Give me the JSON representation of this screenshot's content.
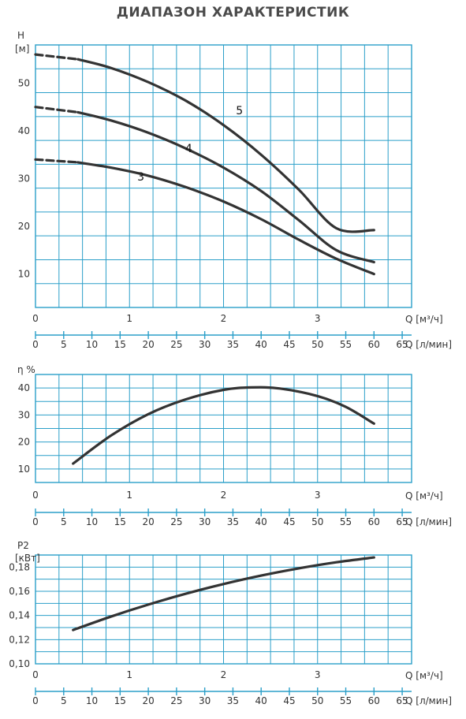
{
  "title": "ДИАПАЗОН ХАРАКТЕРИСТИК",
  "colors": {
    "grid": "#2b9fc9",
    "curve": "#333333",
    "text": "#333333"
  },
  "chart_data": [
    {
      "type": "line",
      "ylabel": "H",
      "yunit": "[м]",
      "xlabel_m3h": "Q [м³/ч]",
      "xlabel_lmin": "Q [л/мин]",
      "xlim": [
        0,
        4
      ],
      "ylim": [
        3,
        58
      ],
      "yticks": [
        "10",
        "20",
        "30",
        "40",
        "50"
      ],
      "yticks_values": [
        10,
        20,
        30,
        40,
        50
      ],
      "xticks_m3h": [
        "0",
        "1",
        "2",
        "3"
      ],
      "xticks_m3h_values": [
        0,
        1,
        2,
        3
      ],
      "xticks_lmin": [
        "0",
        "5",
        "10",
        "15",
        "20",
        "25",
        "30",
        "35",
        "40",
        "45",
        "50",
        "55",
        "60",
        "65"
      ],
      "xticks_lmin_values": [
        0,
        5,
        10,
        15,
        20,
        25,
        30,
        35,
        40,
        45,
        50,
        55,
        60,
        65
      ],
      "series": [
        {
          "name": "5",
          "label_at": [
            2.17,
            43.5
          ],
          "dashed_x": [
            0,
            0.45
          ],
          "dashed_y": [
            56.0,
            55.0
          ],
          "x": [
            0.45,
            0.8,
            1.2,
            1.6,
            2.0,
            2.4,
            2.8,
            3.2,
            3.6
          ],
          "values": [
            55.0,
            53.2,
            50.2,
            46.3,
            41.2,
            35.0,
            27.7,
            19.6,
            19.2
          ]
        },
        {
          "name": "4",
          "label_at": [
            1.63,
            35.5
          ],
          "dashed_x": [
            0,
            0.45
          ],
          "dashed_y": [
            45.0,
            43.9
          ],
          "x": [
            0.45,
            0.8,
            1.2,
            1.6,
            2.0,
            2.4,
            2.8,
            3.2,
            3.6
          ],
          "values": [
            43.9,
            42.2,
            39.6,
            36.3,
            32.3,
            27.4,
            21.3,
            15.0,
            12.5
          ]
        },
        {
          "name": "3",
          "label_at": [
            1.12,
            29.6
          ],
          "dashed_x": [
            0,
            0.45
          ],
          "dashed_y": [
            34.0,
            33.4
          ],
          "x": [
            0.45,
            0.8,
            1.2,
            1.6,
            2.0,
            2.4,
            2.8,
            3.2,
            3.6
          ],
          "values": [
            33.4,
            32.3,
            30.6,
            28.2,
            25.2,
            21.5,
            17.2,
            13.2,
            10.0
          ]
        }
      ]
    },
    {
      "type": "line",
      "ylabel": "η %",
      "xlabel_m3h": "Q [м³/ч]",
      "xlabel_lmin": "Q [л/мин]",
      "xlim": [
        0,
        4
      ],
      "ylim": [
        5,
        45
      ],
      "yticks": [
        "10",
        "20",
        "30",
        "40"
      ],
      "yticks_values": [
        10,
        20,
        30,
        40
      ],
      "xticks_m3h": [
        "0",
        "1",
        "2",
        "3"
      ],
      "xticks_m3h_values": [
        0,
        1,
        2,
        3
      ],
      "xticks_lmin": [
        "0",
        "5",
        "10",
        "15",
        "20",
        "25",
        "30",
        "35",
        "40",
        "45",
        "50",
        "55",
        "60",
        "65"
      ],
      "xticks_lmin_values": [
        0,
        5,
        10,
        15,
        20,
        25,
        30,
        35,
        40,
        45,
        50,
        55,
        60,
        65
      ],
      "series": [
        {
          "x": [
            0.4,
            0.8,
            1.2,
            1.6,
            2.0,
            2.3,
            2.6,
            3.0,
            3.3,
            3.6
          ],
          "values": [
            12.0,
            22.3,
            30.3,
            35.8,
            39.3,
            40.2,
            39.8,
            37.0,
            33.0,
            26.8
          ]
        }
      ]
    },
    {
      "type": "line",
      "ylabel": "P2",
      "yunit": "[кВт]",
      "xlabel_m3h": "Q [м³/ч]",
      "xlabel_lmin": "Q [л/мин]",
      "xlim": [
        0,
        4
      ],
      "ylim": [
        0.1,
        0.19
      ],
      "yticks": [
        "0,10",
        "0,12",
        "0,14",
        "0,16",
        "0,18"
      ],
      "yticks_values": [
        0.1,
        0.12,
        0.14,
        0.16,
        0.18
      ],
      "xticks_m3h": [
        "0",
        "1",
        "2",
        "3"
      ],
      "xticks_m3h_values": [
        0,
        1,
        2,
        3
      ],
      "xticks_lmin": [
        "0",
        "5",
        "10",
        "15",
        "20",
        "25",
        "30",
        "35",
        "40",
        "45",
        "50",
        "55",
        "60",
        "65"
      ],
      "xticks_lmin_values": [
        0,
        5,
        10,
        15,
        20,
        25,
        30,
        35,
        40,
        45,
        50,
        55,
        60,
        65
      ],
      "series": [
        {
          "x": [
            0.4,
            0.8,
            1.2,
            1.6,
            2.0,
            2.4,
            2.8,
            3.2,
            3.6
          ],
          "values": [
            0.128,
            0.139,
            0.149,
            0.158,
            0.166,
            0.173,
            0.179,
            0.184,
            0.188
          ]
        }
      ]
    }
  ]
}
